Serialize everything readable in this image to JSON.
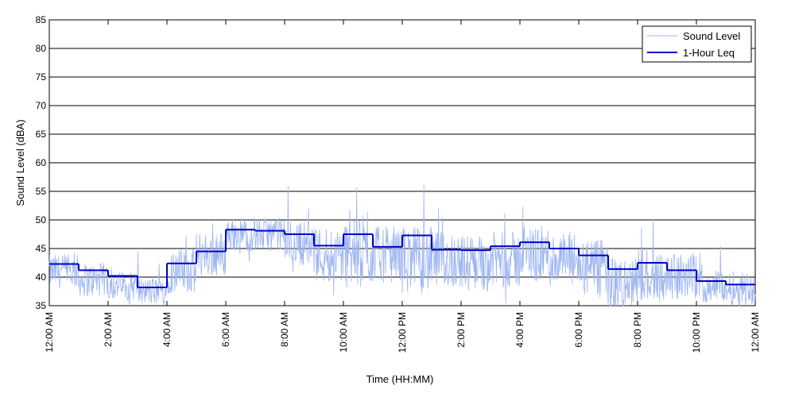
{
  "chart_data": {
    "type": "line",
    "title": "",
    "xlabel": "Time (HH:MM)",
    "ylabel": "Sound Level (dBA)",
    "ylim": [
      35,
      85
    ],
    "yticks": [
      35,
      40,
      45,
      50,
      55,
      60,
      65,
      70,
      75,
      80,
      85
    ],
    "xlim_hours": [
      0,
      24
    ],
    "xticks": [
      {
        "hour": 0,
        "label": "12:00 AM"
      },
      {
        "hour": 2,
        "label": "2:00 AM"
      },
      {
        "hour": 4,
        "label": "4:00 AM"
      },
      {
        "hour": 6,
        "label": "6:00 AM"
      },
      {
        "hour": 8,
        "label": "8:00 AM"
      },
      {
        "hour": 10,
        "label": "10:00 AM"
      },
      {
        "hour": 12,
        "label": "12:00 PM"
      },
      {
        "hour": 14,
        "label": "2:00 PM"
      },
      {
        "hour": 16,
        "label": "4:00 PM"
      },
      {
        "hour": 18,
        "label": "6:00 PM"
      },
      {
        "hour": 20,
        "label": "8:00 PM"
      },
      {
        "hour": 22,
        "label": "10:00 PM"
      },
      {
        "hour": 24,
        "label": "12:00 AM"
      }
    ],
    "grid": {
      "horizontal": true,
      "vertical_ticks": true
    },
    "legend_position": "top-right",
    "series": [
      {
        "name": "Sound Level",
        "color": "#9db5f0",
        "style": "thin-line",
        "hourly_typical": [
          41,
          39.5,
          38.5,
          37.5,
          41,
          44,
          47.5,
          47.5,
          46,
          44,
          44,
          44,
          43,
          43,
          42.5,
          43,
          44,
          43,
          41.5,
          38.5,
          40.5,
          40,
          38.5,
          38
        ],
        "hourly_spread": [
          3,
          3,
          2.5,
          2.5,
          4,
          4,
          3,
          3,
          4,
          5,
          6,
          5,
          6,
          5,
          5,
          5,
          5,
          5,
          5,
          5,
          5,
          4,
          3,
          3
        ]
      },
      {
        "name": "1-Hour Leq",
        "color": "#0000cc",
        "style": "step",
        "hours": [
          0,
          1,
          2,
          3,
          4,
          5,
          6,
          7,
          8,
          9,
          10,
          11,
          12,
          13,
          14,
          15,
          16,
          17,
          18,
          19,
          20,
          21,
          22,
          23
        ],
        "values": [
          42.3,
          41.2,
          40.2,
          38.2,
          42.4,
          44.5,
          48.3,
          48.1,
          47.5,
          45.5,
          47.5,
          45.3,
          47.3,
          44.8,
          44.7,
          45.4,
          46.1,
          45.0,
          43.8,
          41.4,
          42.5,
          41.2,
          39.3,
          38.7
        ]
      }
    ]
  }
}
